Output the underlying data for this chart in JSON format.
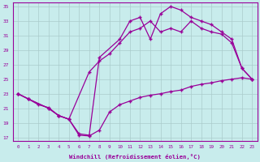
{
  "xlabel": "Windchill (Refroidissement éolien,°C)",
  "bg_color": "#c8ecec",
  "line_color": "#990099",
  "grid_color": "#aacccc",
  "xlim": [
    -0.5,
    23.5
  ],
  "ylim": [
    16.5,
    35.5
  ],
  "yticks": [
    17,
    19,
    21,
    23,
    25,
    27,
    29,
    31,
    33,
    35
  ],
  "xticks": [
    0,
    1,
    2,
    3,
    4,
    5,
    6,
    7,
    8,
    9,
    10,
    11,
    12,
    13,
    14,
    15,
    16,
    17,
    18,
    19,
    20,
    21,
    22,
    23
  ],
  "line1_x": [
    0,
    1,
    2,
    3,
    4,
    5,
    6,
    7,
    8,
    9,
    10,
    11,
    12,
    13,
    14,
    15,
    16,
    17,
    18,
    19,
    20,
    21,
    22,
    23
  ],
  "line1_y": [
    23.0,
    22.3,
    21.5,
    21.1,
    20.0,
    19.5,
    17.3,
    17.2,
    18.0,
    20.5,
    21.5,
    22.0,
    22.5,
    22.8,
    23.0,
    23.3,
    23.5,
    24.0,
    24.3,
    24.5,
    24.8,
    25.0,
    25.2,
    25.0
  ],
  "line2_x": [
    0,
    1,
    3,
    4,
    5,
    6,
    7,
    8,
    10,
    11,
    12,
    13,
    14,
    15,
    16,
    17,
    18,
    19,
    20,
    21,
    22,
    23
  ],
  "line2_y": [
    23.0,
    22.3,
    21.0,
    20.0,
    19.5,
    17.5,
    17.3,
    28.0,
    30.5,
    33.0,
    33.5,
    30.5,
    34.0,
    35.0,
    34.5,
    33.5,
    33.0,
    32.5,
    31.5,
    30.5,
    26.5,
    25.0
  ],
  "line3_x": [
    0,
    1,
    3,
    4,
    5,
    7,
    8,
    9,
    10,
    11,
    12,
    13,
    14,
    15,
    16,
    17,
    18,
    19,
    20,
    21,
    22,
    23
  ],
  "line3_y": [
    23.0,
    22.3,
    21.0,
    20.0,
    19.5,
    26.0,
    27.5,
    28.5,
    30.0,
    31.5,
    32.0,
    33.0,
    31.5,
    32.0,
    31.5,
    33.0,
    32.0,
    31.5,
    31.2,
    30.0,
    26.5,
    25.0
  ]
}
